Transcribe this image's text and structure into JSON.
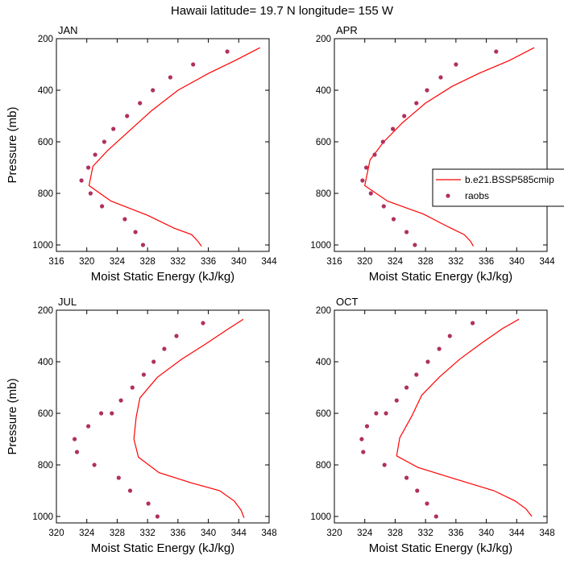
{
  "figure": {
    "title": "Hawaii  latitude= 19.7 N longitude= 155 W"
  },
  "legend": {
    "entries": [
      {
        "name": "b.e21.BSSP585cmip",
        "color": "#ff0000",
        "style": "line"
      },
      {
        "name": "raobs",
        "color": "#b03060",
        "style": "marker"
      }
    ]
  },
  "colors": {
    "model_line": "#ff0000",
    "raobs_marker": "#b03060"
  },
  "chart_data": [
    {
      "type": "line",
      "title": "JAN",
      "xlabel": "Moist Static Energy (kJ/kg)",
      "ylabel": "Pressure (mb)",
      "xlim": [
        316,
        344
      ],
      "ylim": [
        1025,
        200
      ],
      "xticks": [
        316,
        320,
        324,
        328,
        332,
        336,
        340,
        344
      ],
      "yticks": [
        200,
        400,
        600,
        800,
        1000
      ],
      "series": [
        {
          "name": "b.e21.BSSP585cmip",
          "x": [
            342.8,
            339.5,
            336.0,
            332.0,
            328.5,
            325.5,
            322.7,
            320.8,
            320.3,
            323.2,
            328.0,
            331.5,
            333.8,
            334.6,
            335.1
          ],
          "y": [
            235,
            285,
            335,
            400,
            480,
            560,
            635,
            695,
            770,
            830,
            885,
            935,
            960,
            985,
            1005
          ]
        },
        {
          "name": "raobs",
          "x": [
            338.5,
            334.0,
            331.0,
            328.7,
            327.0,
            325.3,
            323.5,
            322.3,
            321.1,
            320.2,
            319.3,
            320.5,
            322.0,
            325.0,
            326.4,
            327.4
          ],
          "y": [
            250,
            300,
            350,
            400,
            450,
            500,
            550,
            600,
            650,
            700,
            750,
            800,
            850,
            900,
            950,
            1000
          ]
        }
      ]
    },
    {
      "type": "line",
      "title": "APR",
      "xlabel": "Moist Static Energy (kJ/kg)",
      "ylabel": "",
      "xlim": [
        316,
        344
      ],
      "ylim": [
        1025,
        200
      ],
      "xticks": [
        316,
        320,
        324,
        328,
        332,
        336,
        340,
        344
      ],
      "yticks": [
        200,
        400,
        600,
        800,
        1000
      ],
      "series": [
        {
          "name": "b.e21.BSSP585cmip",
          "x": [
            342.3,
            339.0,
            335.0,
            331.5,
            328.0,
            325.0,
            322.5,
            320.7,
            320.0,
            323.0,
            327.7,
            331.0,
            333.1,
            333.9,
            334.3
          ],
          "y": [
            235,
            285,
            335,
            385,
            450,
            525,
            600,
            670,
            770,
            830,
            880,
            930,
            960,
            985,
            1005
          ]
        },
        {
          "name": "raobs",
          "x": [
            337.3,
            332.0,
            330.0,
            328.2,
            326.8,
            325.2,
            323.7,
            322.4,
            321.3,
            320.2,
            319.7,
            320.8,
            322.5,
            323.8,
            325.5,
            326.6
          ],
          "y": [
            250,
            300,
            350,
            400,
            450,
            500,
            550,
            600,
            650,
            700,
            750,
            800,
            850,
            900,
            950,
            1000
          ]
        }
      ]
    },
    {
      "type": "line",
      "title": "JUL",
      "xlabel": "Moist Static Energy (kJ/kg)",
      "ylabel": "Pressure (mb)",
      "xlim": [
        320,
        348
      ],
      "ylim": [
        1025,
        200
      ],
      "xticks": [
        320,
        324,
        328,
        332,
        336,
        340,
        344,
        348
      ],
      "yticks": [
        200,
        400,
        600,
        800,
        1000
      ],
      "series": [
        {
          "name": "b.e21.BSSP585cmip",
          "x": [
            344.6,
            342.5,
            339.7,
            336.5,
            333.3,
            331.0,
            330.5,
            330.2,
            330.8,
            333.5,
            337.8,
            341.5,
            343.4,
            344.3,
            344.7
          ],
          "y": [
            235,
            275,
            330,
            390,
            460,
            540,
            615,
            700,
            770,
            830,
            870,
            900,
            940,
            975,
            1005
          ]
        },
        {
          "name": "raobs",
          "x": [
            339.3,
            335.8,
            334.2,
            332.8,
            331.5,
            330.0,
            328.5,
            327.3,
            325.9,
            324.2,
            322.4,
            322.7,
            325.0,
            328.2,
            329.7,
            332.1,
            333.3
          ],
          "y": [
            250,
            300,
            350,
            400,
            450,
            500,
            550,
            600,
            600,
            650,
            700,
            750,
            800,
            850,
            900,
            950,
            1000
          ]
        }
      ]
    },
    {
      "type": "line",
      "title": "OCT",
      "xlabel": "Moist Static Energy (kJ/kg)",
      "ylabel": "",
      "xlim": [
        320,
        348
      ],
      "ylim": [
        1025,
        200
      ],
      "xticks": [
        320,
        324,
        328,
        332,
        336,
        340,
        344,
        348
      ],
      "yticks": [
        200,
        400,
        600,
        800,
        1000
      ],
      "series": [
        {
          "name": "b.e21.BSSP585cmip",
          "x": [
            344.3,
            342.2,
            339.5,
            336.5,
            333.8,
            331.5,
            330.2,
            328.6,
            328.2,
            331.0,
            336.5,
            341.0,
            343.8,
            345.2,
            346.0
          ],
          "y": [
            235,
            270,
            325,
            390,
            460,
            530,
            610,
            695,
            765,
            810,
            860,
            900,
            940,
            970,
            1000
          ]
        },
        {
          "name": "raobs",
          "x": [
            338.2,
            335.2,
            333.8,
            332.3,
            330.8,
            329.5,
            328.2,
            326.8,
            325.5,
            324.3,
            323.6,
            323.8,
            326.6,
            329.5,
            330.9,
            332.2,
            333.4
          ],
          "y": [
            250,
            300,
            350,
            400,
            450,
            500,
            550,
            600,
            600,
            650,
            700,
            750,
            800,
            850,
            900,
            950,
            1000
          ]
        }
      ]
    }
  ]
}
